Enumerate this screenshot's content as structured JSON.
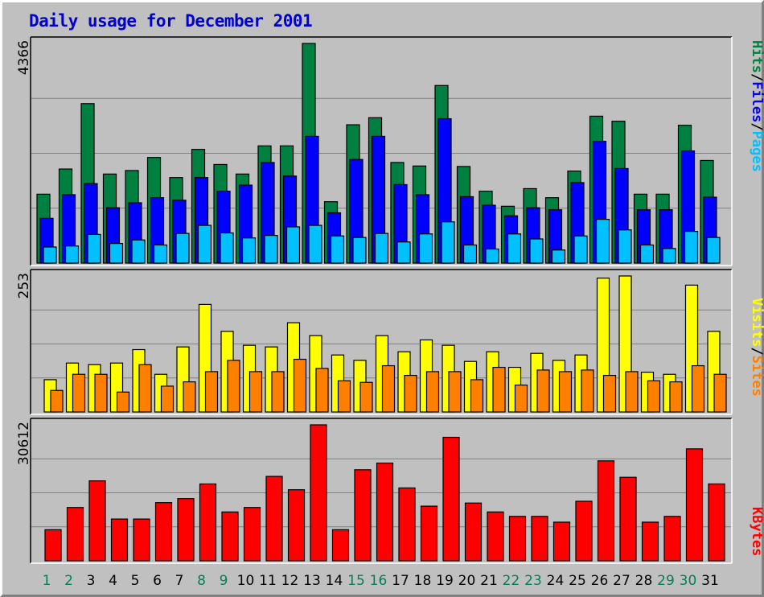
{
  "title": "Daily usage for December 2001",
  "colors": {
    "background": "#c0c0c0",
    "title": "#0000cc",
    "hits": "#008040",
    "files": "#0000ff",
    "pages": "#00c0ff",
    "visits": "#ffff00",
    "sites": "#ff8000",
    "kbytes": "#ff0000",
    "weekend_label": "#00805a",
    "weekday_label": "#000000",
    "grid": "#808080"
  },
  "chart_data": [
    {
      "type": "bar",
      "panel": "hits-files-pages",
      "categories": [
        "1",
        "2",
        "3",
        "4",
        "5",
        "6",
        "7",
        "8",
        "9",
        "10",
        "11",
        "12",
        "13",
        "14",
        "15",
        "16",
        "17",
        "18",
        "19",
        "20",
        "21",
        "22",
        "23",
        "24",
        "25",
        "26",
        "27",
        "28",
        "29",
        "30",
        "31"
      ],
      "ymax_label": "4366",
      "ylim": [
        0,
        4366
      ],
      "grid": true,
      "legend": [
        "Pages",
        "/",
        "Files",
        "/",
        "Hits"
      ],
      "series": [
        {
          "name": "Hits",
          "values": [
            1370,
            1870,
            3170,
            1770,
            1840,
            2100,
            1700,
            2260,
            1960,
            1770,
            2330,
            2330,
            4366,
            1220,
            2750,
            2890,
            2000,
            1930,
            3530,
            1920,
            1430,
            1130,
            1480,
            1300,
            1830,
            2920,
            2820,
            1370,
            1370,
            2740,
            2040
          ]
        },
        {
          "name": "Files",
          "values": [
            890,
            1360,
            1580,
            1100,
            1200,
            1300,
            1250,
            1700,
            1430,
            1550,
            2000,
            1730,
            2520,
            1000,
            2060,
            2520,
            1560,
            1360,
            2870,
            1320,
            1150,
            940,
            1100,
            1060,
            1600,
            2420,
            1880,
            1060,
            1060,
            2230,
            1310
          ]
        },
        {
          "name": "Pages",
          "values": [
            320,
            340,
            570,
            390,
            460,
            360,
            590,
            750,
            600,
            500,
            550,
            720,
            750,
            540,
            510,
            590,
            420,
            580,
            820,
            360,
            280,
            580,
            480,
            260,
            540,
            870,
            660,
            360,
            290,
            630,
            510
          ]
        }
      ]
    },
    {
      "type": "bar",
      "panel": "visits-sites",
      "categories": [
        "1",
        "2",
        "3",
        "4",
        "5",
        "6",
        "7",
        "8",
        "9",
        "10",
        "11",
        "12",
        "13",
        "14",
        "15",
        "16",
        "17",
        "18",
        "19",
        "20",
        "21",
        "22",
        "23",
        "24",
        "25",
        "26",
        "27",
        "28",
        "29",
        "30",
        "31"
      ],
      "ymax_label": "253",
      "ylim": [
        0,
        253
      ],
      "grid": true,
      "legend": [
        "Sites",
        "/",
        "Visits"
      ],
      "series": [
        {
          "name": "Visits",
          "values": [
            60,
            91,
            88,
            91,
            116,
            70,
            121,
            200,
            150,
            124,
            121,
            166,
            142,
            106,
            96,
            142,
            112,
            134,
            124,
            94,
            112,
            83,
            109,
            96,
            106,
            249,
            253,
            74,
            70,
            236,
            150
          ]
        },
        {
          "name": "Sites",
          "values": [
            40,
            70,
            70,
            37,
            88,
            48,
            56,
            75,
            96,
            75,
            75,
            98,
            81,
            58,
            55,
            86,
            68,
            75,
            75,
            60,
            83,
            50,
            78,
            75,
            78,
            68,
            75,
            58,
            56,
            86,
            70
          ]
        }
      ]
    },
    {
      "type": "bar",
      "panel": "kbytes",
      "categories": [
        "1",
        "2",
        "3",
        "4",
        "5",
        "6",
        "7",
        "8",
        "9",
        "10",
        "11",
        "12",
        "13",
        "14",
        "15",
        "16",
        "17",
        "18",
        "19",
        "20",
        "21",
        "22",
        "23",
        "24",
        "25",
        "26",
        "27",
        "28",
        "29",
        "30",
        "31"
      ],
      "ymax_label": "30612",
      "ylim": [
        0,
        30612
      ],
      "grid": true,
      "legend": [
        "KBytes"
      ],
      "series": [
        {
          "name": "KBytes",
          "values": [
            7000,
            12000,
            18000,
            9400,
            9400,
            13100,
            14000,
            17300,
            11000,
            12000,
            19000,
            16000,
            30612,
            7000,
            20500,
            22000,
            16400,
            12300,
            27800,
            13000,
            11000,
            10000,
            10000,
            8700,
            13400,
            22500,
            18800,
            8700,
            10000,
            25200,
            17300
          ]
        }
      ]
    }
  ],
  "weekend_days": [
    "1",
    "2",
    "8",
    "9",
    "15",
    "16",
    "22",
    "23",
    "29",
    "30"
  ]
}
